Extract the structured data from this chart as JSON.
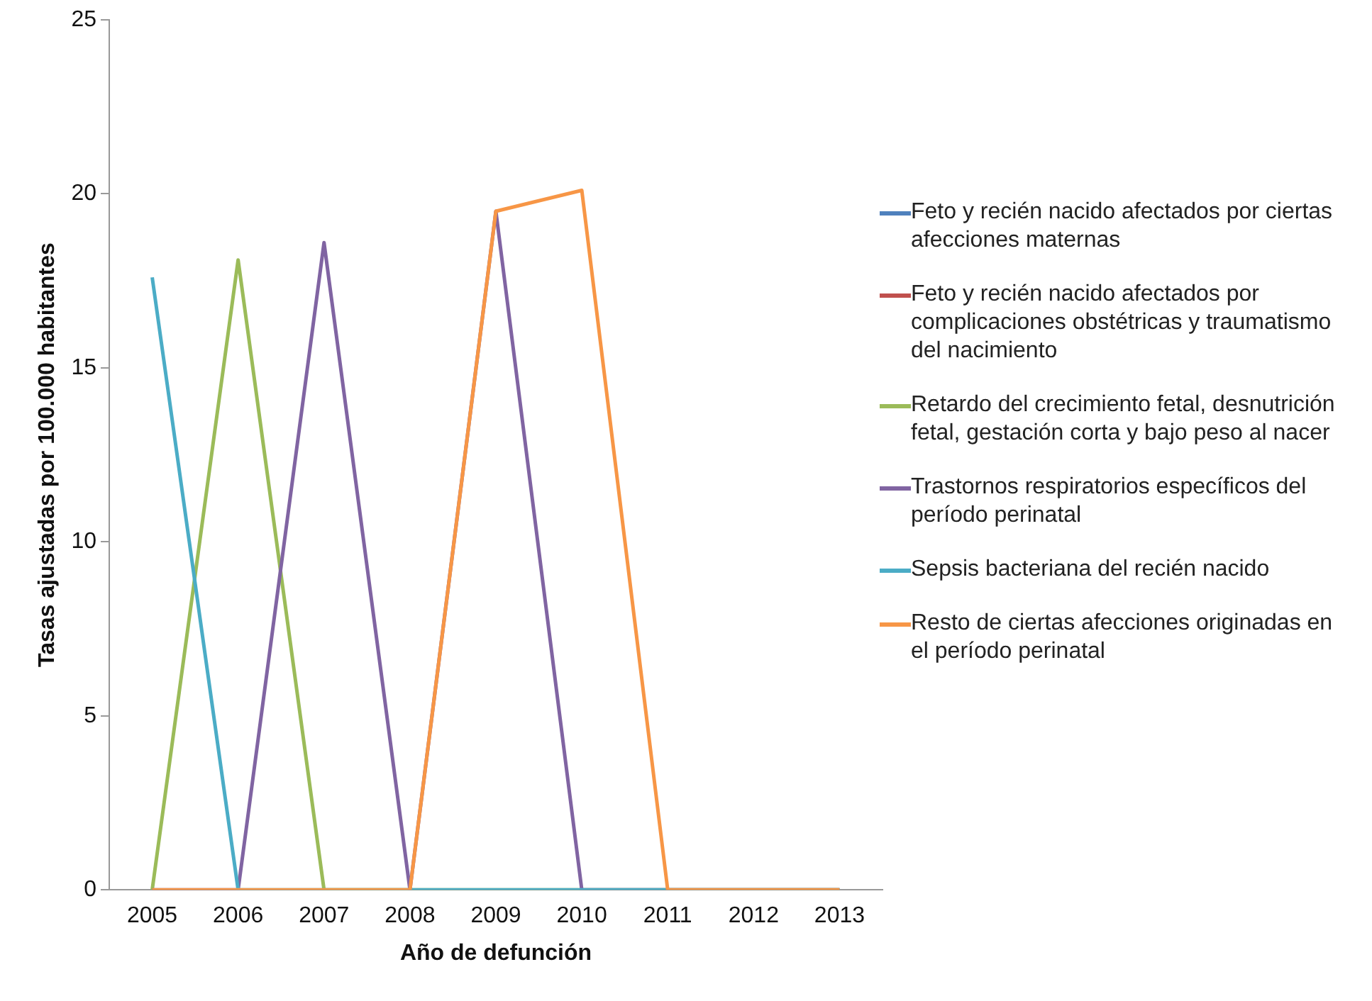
{
  "chart_data": {
    "type": "line",
    "xlabel": "Año de defunción",
    "ylabel": "Tasas ajustadas por 100.000 habitantes",
    "categories": [
      "2005",
      "2006",
      "2007",
      "2008",
      "2009",
      "2010",
      "2011",
      "2012",
      "2013"
    ],
    "series": [
      {
        "name": "Feto y recién nacido afectados por ciertas afecciones maternas",
        "color": "#4f81bd",
        "values": [
          null,
          null,
          null,
          null,
          null,
          null,
          null,
          null,
          null
        ]
      },
      {
        "name": "Feto y recién nacido afectados por complicaciones obstétricas y traumatismo del nacimiento",
        "color": "#c0504d",
        "values": [
          null,
          null,
          null,
          null,
          null,
          null,
          null,
          null,
          null
        ]
      },
      {
        "name": "Retardo del crecimiento fetal, desnutrición fetal, gestación corta y bajo peso al nacer",
        "color": "#9bbb59",
        "values": [
          0,
          18.1,
          0,
          0,
          0,
          0,
          0,
          0,
          0
        ]
      },
      {
        "name": "Trastornos respiratorios específicos del período perinatal",
        "color": "#8064a2",
        "values": [
          0,
          0,
          18.6,
          0,
          19.5,
          0,
          0,
          0,
          0
        ]
      },
      {
        "name": "Sepsis bacteriana del recién nacido",
        "color": "#4bacc6",
        "values": [
          17.6,
          0,
          0,
          0,
          0,
          0,
          0,
          0,
          0
        ]
      },
      {
        "name": "Resto de ciertas afecciones originadas en el período perinatal",
        "color": "#f79646",
        "values": [
          0,
          0,
          0,
          0,
          19.5,
          20.1,
          0,
          0,
          0
        ]
      }
    ],
    "ylim": [
      0,
      25
    ],
    "yticks": [
      0,
      5,
      10,
      15,
      20,
      25
    ],
    "grid": false,
    "legend": "right",
    "marker": "none",
    "line_style": "solid"
  }
}
